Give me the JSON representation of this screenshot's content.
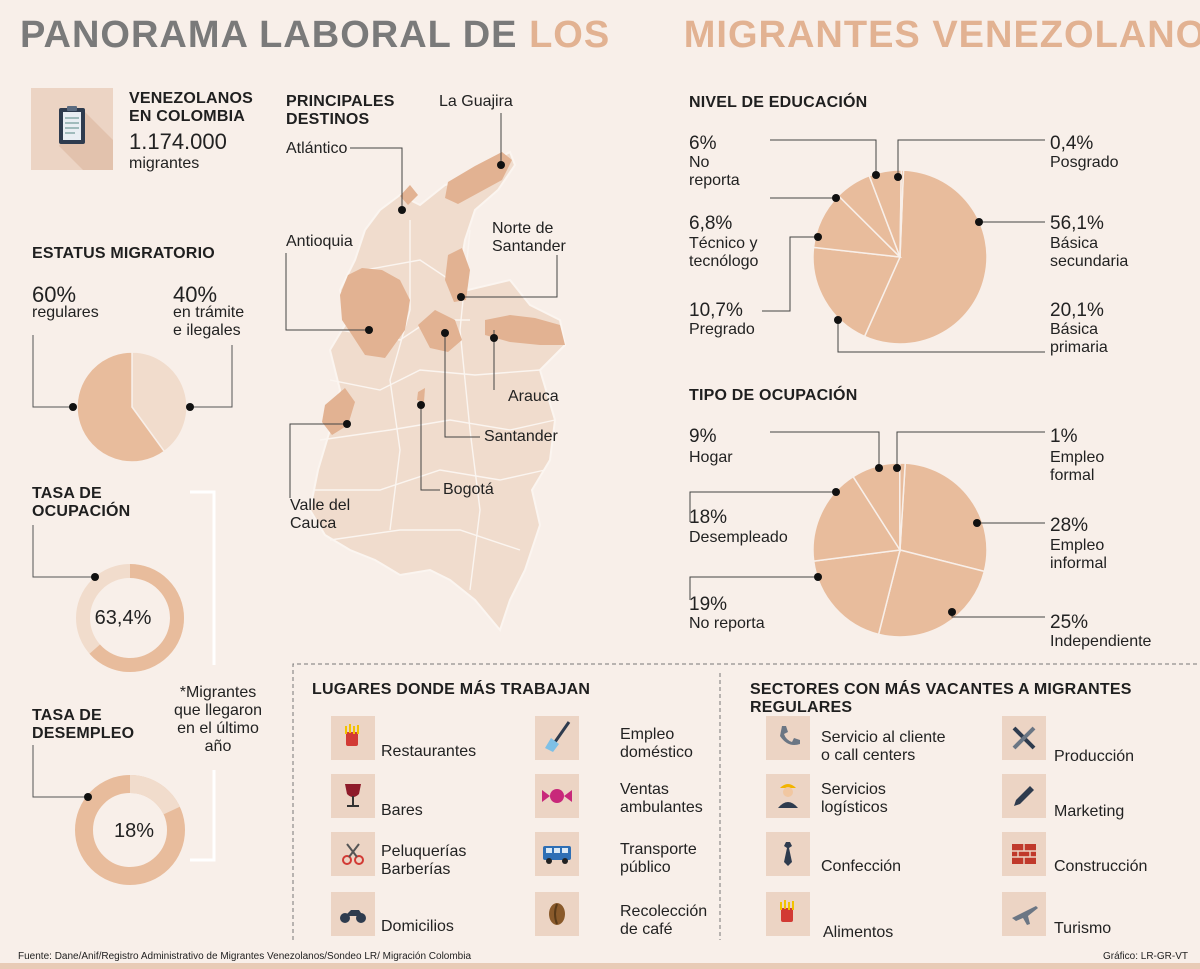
{
  "title": {
    "part1": "PANORAMA LABORAL DE",
    "part2": "LOS",
    "part3": "MIGRANTES VENEZOLANOS"
  },
  "colors": {
    "accent": "#e2b292",
    "slice": "#e8bc9c",
    "light": "#f1dccc",
    "bg": "#f8efe9",
    "title_gray": "#7a7a7a"
  },
  "venezolanos": {
    "heading": "VENEZOLANOS\nEN COLOMBIA",
    "number": "1.174.000",
    "unit": "migrantes",
    "icon": "clipboard-icon"
  },
  "estatus": {
    "heading": "ESTATUS MIGRATORIO",
    "regulares_pct": "60%",
    "regulares_label": "regulares",
    "tramite_pct": "40%",
    "tramite_label": "en trámite\ne ilegales",
    "regulares_value": 60,
    "tramite_value": 40
  },
  "ocupacion": {
    "heading": "TASA DE\nOCUPACIÓN",
    "value_label": "63,4%",
    "value": 63.4
  },
  "desempleo": {
    "heading": "TASA DE\nDESEMPLEO",
    "value_label": "18%",
    "value": 18
  },
  "note": "*Migrantes\nque llegaron\nen el último\naño",
  "map": {
    "heading": "PRINCIPALES\nDESTINOS",
    "labels": {
      "atlantico": "Atlántico",
      "guajira": "La Guajira",
      "antioquia": "Antioquia",
      "norte_santander": "Norte de\nSantander",
      "arauca": "Arauca",
      "santander": "Santander",
      "bogota": "Bogotá",
      "valle": "Valle del\nCauca"
    }
  },
  "educacion": {
    "heading": "NIVEL DE EDUCACIÓN",
    "items": [
      {
        "pct": "56,1%",
        "label": "Básica\nsecundaria",
        "value": 56.1
      },
      {
        "pct": "20,1%",
        "label": "Básica\nprimaria",
        "value": 20.1
      },
      {
        "pct": "10,7%",
        "label": "Pregrado",
        "value": 10.7
      },
      {
        "pct": "6,8%",
        "label": "Técnico y\ntecnólogo",
        "value": 6.8
      },
      {
        "pct": "6%",
        "label": "No\nreporta",
        "value": 6
      },
      {
        "pct": "0,4%",
        "label": "Posgrado",
        "value": 0.4
      }
    ]
  },
  "ocupacion_tipo": {
    "heading": "TIPO DE OCUPACIÓN",
    "items": [
      {
        "pct": "28%",
        "label": "Empleo\ninformal",
        "value": 28
      },
      {
        "pct": "25%",
        "label": "Independiente",
        "value": 25
      },
      {
        "pct": "19%",
        "label": "No reporta",
        "value": 19
      },
      {
        "pct": "18%",
        "label": "Desempleado",
        "value": 18
      },
      {
        "pct": "9%",
        "label": "Hogar",
        "value": 9
      },
      {
        "pct": "1%",
        "label": "Empleo\nformal",
        "value": 1
      }
    ]
  },
  "lugares": {
    "heading": "LUGARES DONDE MÁS TRABAJAN",
    "col1": [
      {
        "label": "Restaurantes",
        "icon": "fries-icon"
      },
      {
        "label": "Bares",
        "icon": "wine-glass-icon"
      },
      {
        "label": "Peluquerías\nBarberías",
        "icon": "scissors-icon"
      },
      {
        "label": "Domicilios",
        "icon": "motorcycle-icon"
      }
    ],
    "col2": [
      {
        "label": "Empleo\ndoméstico",
        "icon": "broom-icon"
      },
      {
        "label": "Ventas\nambulantes",
        "icon": "candy-icon"
      },
      {
        "label": "Transporte\npúblico",
        "icon": "bus-icon"
      },
      {
        "label": "Recolección\nde café",
        "icon": "coffee-bean-icon"
      }
    ]
  },
  "sectores": {
    "heading": "SECTORES CON MÁS VACANTES A MIGRANTES REGULARES",
    "col1": [
      {
        "label": "Servicio al cliente\no call centers",
        "icon": "phone-icon"
      },
      {
        "label": "Servicios\nlogísticos",
        "icon": "worker-icon"
      },
      {
        "label": "Confección",
        "icon": "tie-icon"
      },
      {
        "label": "Alimentos",
        "icon": "fries-icon"
      }
    ],
    "col2": [
      {
        "label": "Producción",
        "icon": "tools-icon"
      },
      {
        "label": "Marketing",
        "icon": "pen-icon"
      },
      {
        "label": "Construcción",
        "icon": "bricks-icon"
      },
      {
        "label": "Turismo",
        "icon": "airplane-icon"
      }
    ]
  },
  "footer": {
    "source": "Fuente: Dane/Anif/Registro Administrativo de Migrantes Venezolanos/Sondeo LR/ Migración Colombia",
    "credit": "Gráfico: LR-GR-VT"
  }
}
